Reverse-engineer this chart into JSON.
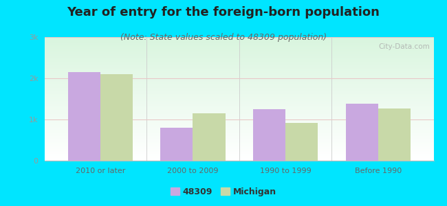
{
  "title": "Year of entry for the foreign-born population",
  "subtitle": "(Note: State values scaled to 48309 population)",
  "categories": [
    "2010 or later",
    "2000 to 2009",
    "1990 to 1999",
    "Before 1990"
  ],
  "values_48309": [
    2150,
    800,
    1250,
    1380
  ],
  "values_michigan": [
    2100,
    1150,
    920,
    1270
  ],
  "bar_color_48309": "#c9a8e0",
  "bar_color_michigan": "#c8d9a8",
  "background_color": "#00e5ff",
  "ylim": [
    0,
    3000
  ],
  "yticks": [
    0,
    1000,
    2000,
    3000
  ],
  "ytick_labels": [
    "0",
    "1k",
    "2k",
    "3k"
  ],
  "title_fontsize": 13,
  "subtitle_fontsize": 9,
  "legend_labels": [
    "48309",
    "Michigan"
  ],
  "bar_width": 0.35,
  "watermark": "City-Data.com"
}
